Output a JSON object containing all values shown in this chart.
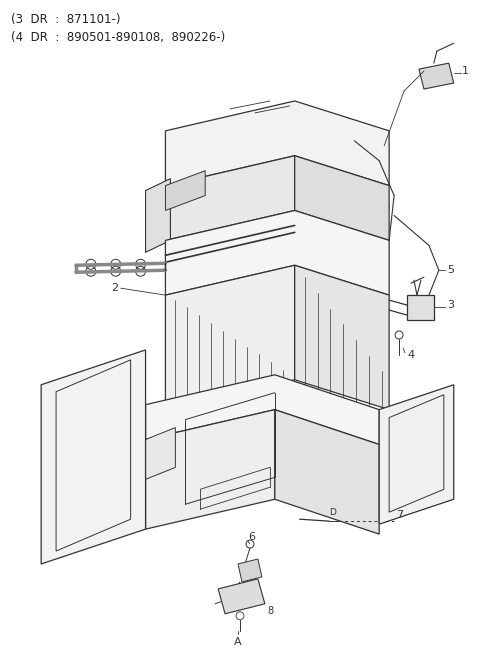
{
  "title_line1": "(3  DR  :  871101-)",
  "title_line2": "(4  DR  :  890501-890108,  890226-)",
  "background_color": "#ffffff",
  "line_color": "#333333",
  "fig_width": 4.8,
  "fig_height": 6.54,
  "dpi": 100
}
